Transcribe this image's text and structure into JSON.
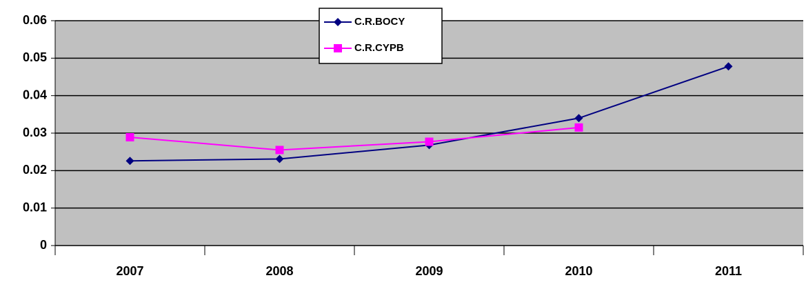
{
  "chart_data": {
    "type": "line",
    "categories": [
      "2007",
      "2008",
      "2009",
      "2010",
      "2011"
    ],
    "series": [
      {
        "name": "C.R.BOCY",
        "color": "#000080",
        "marker": "diamond",
        "values": [
          0.0226,
          0.0231,
          0.0268,
          0.034,
          0.0478
        ]
      },
      {
        "name": "C.R.CYPB",
        "color": "#ff00ff",
        "marker": "square",
        "values": [
          0.0289,
          0.0255,
          0.0277,
          0.0315,
          null
        ]
      }
    ],
    "ylim": [
      0,
      0.06
    ],
    "yticks": [
      0,
      0.01,
      0.02,
      0.03,
      0.04,
      0.05,
      0.06
    ],
    "grid": true
  }
}
